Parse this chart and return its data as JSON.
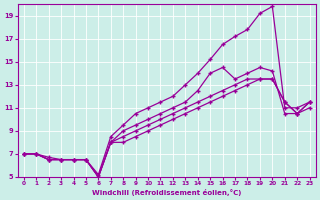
{
  "xlabel": "Windchill (Refroidissement éolien,°C)",
  "background_color": "#cceee8",
  "line_color": "#990099",
  "marker": "+",
  "xlim": [
    -0.5,
    23.5
  ],
  "ylim": [
    5,
    20
  ],
  "yticks": [
    5,
    7,
    9,
    11,
    13,
    15,
    17,
    19
  ],
  "xticks": [
    0,
    1,
    2,
    3,
    4,
    5,
    6,
    7,
    8,
    9,
    10,
    11,
    12,
    13,
    14,
    15,
    16,
    17,
    18,
    19,
    20,
    21,
    22,
    23
  ],
  "lines": [
    {
      "x": [
        0,
        1,
        2,
        3,
        4,
        5,
        6,
        7,
        8,
        9,
        10,
        11,
        12,
        13,
        14,
        15,
        16,
        17,
        18,
        19,
        20,
        21,
        22,
        23
      ],
      "y": [
        7,
        7,
        6.7,
        6.5,
        6.5,
        6.5,
        5.2,
        8.5,
        9.5,
        10.5,
        11,
        11.5,
        12,
        13,
        14,
        15.2,
        16.5,
        17.2,
        17.8,
        19.2,
        19.8,
        11,
        11,
        11.5
      ]
    },
    {
      "x": [
        0,
        1,
        2,
        3,
        4,
        5,
        6,
        7,
        8,
        9,
        10,
        11,
        12,
        13,
        14,
        15,
        16,
        17,
        18,
        19,
        20,
        21,
        22,
        23
      ],
      "y": [
        7,
        7,
        6.5,
        6.5,
        6.5,
        6.5,
        5,
        8,
        9,
        9.5,
        10,
        10.5,
        11,
        11.5,
        12.5,
        14,
        14.5,
        13.5,
        14,
        14.5,
        14.2,
        10.5,
        10.5,
        11
      ]
    },
    {
      "x": [
        0,
        1,
        2,
        3,
        4,
        5,
        6,
        7,
        8,
        9,
        10,
        11,
        12,
        13,
        14,
        15,
        16,
        17,
        18,
        19,
        20,
        21,
        22,
        23
      ],
      "y": [
        7,
        7,
        6.5,
        6.5,
        6.5,
        6.5,
        5,
        8,
        8.5,
        9,
        9.5,
        10,
        10.5,
        11,
        11.5,
        12,
        12.5,
        13,
        13.5,
        13.5,
        13.5,
        11.5,
        10.5,
        11.5
      ]
    },
    {
      "x": [
        0,
        1,
        2,
        3,
        4,
        5,
        6,
        7,
        8,
        9,
        10,
        11,
        12,
        13,
        14,
        15,
        16,
        17,
        18,
        19,
        20,
        21,
        22,
        23
      ],
      "y": [
        7,
        7,
        6.5,
        6.5,
        6.5,
        6.5,
        5,
        8,
        8,
        8.5,
        9,
        9.5,
        10,
        10.5,
        11,
        11.5,
        12,
        12.5,
        13,
        13.5,
        13.5,
        11.5,
        10.5,
        11.5
      ]
    }
  ]
}
